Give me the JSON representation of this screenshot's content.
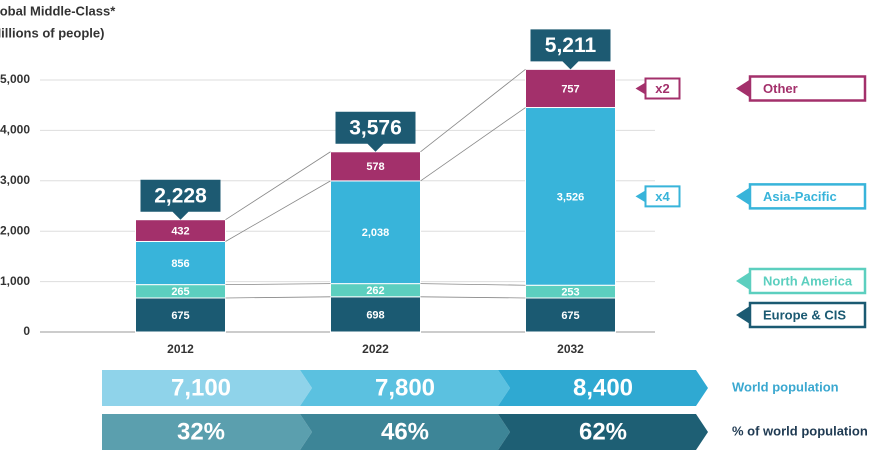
{
  "chart_data": {
    "type": "stacked-bar",
    "title": "Global Middle-Class*",
    "subtitle": "(Millions of people)",
    "categories": [
      "2012",
      "2022",
      "2032"
    ],
    "series": [
      {
        "name": "Europe & CIS",
        "color": "#1b5a72",
        "values": [
          675,
          698,
          675
        ],
        "value_labels": [
          "675",
          "698",
          "675"
        ]
      },
      {
        "name": "North America",
        "color": "#5ccfbf",
        "values": [
          265,
          262,
          253
        ],
        "value_labels": [
          "265",
          "262",
          "253"
        ]
      },
      {
        "name": "Asia-Pacific",
        "color": "#38b4da",
        "values": [
          856,
          2038,
          3526
        ],
        "value_labels": [
          "856",
          "2,038",
          "3,526"
        ],
        "annotation": "x4"
      },
      {
        "name": "Other",
        "color": "#a3306b",
        "values": [
          432,
          578,
          757
        ],
        "value_labels": [
          "432",
          "578",
          "757"
        ],
        "annotation": "x2"
      }
    ],
    "totals": {
      "values": [
        2228,
        3576,
        5211
      ],
      "value_labels": [
        "2,228",
        "3,576",
        "5,211"
      ],
      "color": "#1d5a72"
    },
    "ylim": [
      0,
      5000
    ],
    "yticks": [
      0,
      {
        "value": 1000,
        "label": "1,000"
      },
      {
        "value": 2000,
        "label": "2,000"
      },
      {
        "value": 3000,
        "label": "3,000"
      },
      {
        "value": 4000,
        "label": "4,000"
      },
      {
        "value": 5000,
        "label": "5,000"
      }
    ],
    "grid": true,
    "rows": [
      {
        "label": "World population",
        "label_color": "#3aa8d0",
        "colors": [
          "#8fd3ea",
          "#5bc1e0",
          "#2fa9d2"
        ],
        "values": [
          7100,
          7800,
          8400
        ],
        "value_labels": [
          "7,100",
          "7,800",
          "8,400"
        ]
      },
      {
        "label": "% of world population",
        "label_color": "#1f3a52",
        "colors": [
          "#5b9fae",
          "#3d8597",
          "#1e5f74"
        ],
        "values": [
          32,
          46,
          62
        ],
        "value_labels": [
          "32%",
          "46%",
          "62%"
        ]
      }
    ]
  }
}
